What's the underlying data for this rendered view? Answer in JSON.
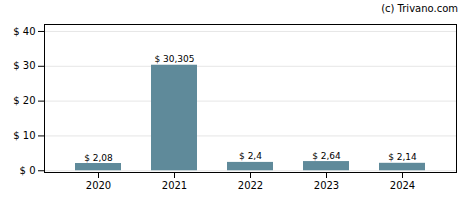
{
  "chart_data": {
    "type": "bar",
    "categories": [
      "2020",
      "2021",
      "2022",
      "2023",
      "2024"
    ],
    "values": [
      2.08,
      30.305,
      2.4,
      2.64,
      2.14
    ],
    "value_labels": [
      "$ 2,08",
      "$ 30,305",
      "$ 2,4",
      "$ 2,64",
      "$ 2,14"
    ],
    "data_labels": true,
    "color": "#5f8a9a",
    "ylim": [
      -0.5,
      42
    ],
    "yticks": [
      {
        "value": 0,
        "label": "$ 0"
      },
      {
        "value": 10,
        "label": "$ 10"
      },
      {
        "value": 20,
        "label": "$ 20"
      },
      {
        "value": 30,
        "label": "$ 30"
      },
      {
        "value": 40,
        "label": "$ 40"
      }
    ],
    "grid": true,
    "annotations": [
      "(c) Trivano.com"
    ]
  }
}
